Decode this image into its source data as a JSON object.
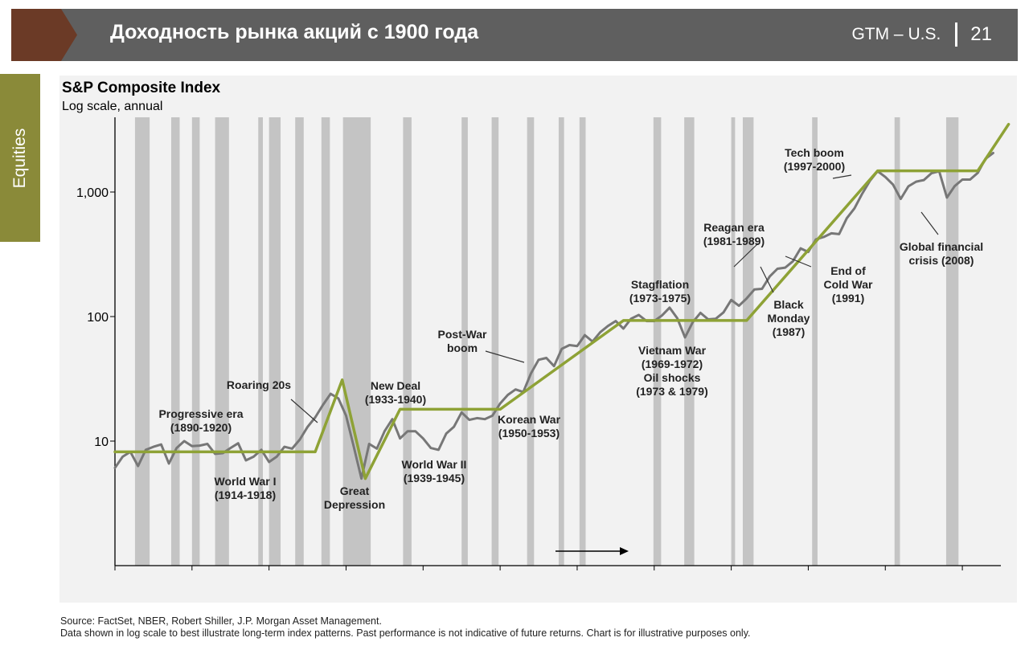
{
  "header": {
    "title": "Доходность рынка акций с 1900 года",
    "badge": "GTM – U.S.",
    "page_number": "21",
    "accent_color": "#6b3a26",
    "bar_color": "#5f5f5f"
  },
  "side_tab": {
    "label": "Equities",
    "color": "#8a8a39"
  },
  "chart_data": {
    "type": "line",
    "title": "S&P Composite Index",
    "subtitle": "Log scale, annual",
    "y_scale": "log",
    "ylim": [
      1,
      4000
    ],
    "xlim": [
      1900,
      2015
    ],
    "y_ticks": [
      {
        "value": 10,
        "label": "10"
      },
      {
        "value": 100,
        "label": "100"
      },
      {
        "value": 1000,
        "label": "1,000"
      }
    ],
    "x_ticks": [
      1900,
      1910,
      1920,
      1930,
      1940,
      1950,
      1960,
      1970,
      1980,
      1990,
      2000,
      2010
    ],
    "recession_shading": [
      [
        1902.6,
        1904.5
      ],
      [
        1907.3,
        1908.4
      ],
      [
        1910,
        1911
      ],
      [
        1913,
        1914.8
      ],
      [
        1918.6,
        1919.2
      ],
      [
        1920,
        1921.5
      ],
      [
        1923.4,
        1924.5
      ],
      [
        1926.8,
        1927.9
      ],
      [
        1929.6,
        1933.2
      ],
      [
        1937.4,
        1938.5
      ],
      [
        1945,
        1945.8
      ],
      [
        1948.9,
        1949.8
      ],
      [
        1953.5,
        1954.4
      ],
      [
        1957.6,
        1958.3
      ],
      [
        1960.3,
        1961.1
      ],
      [
        1969.9,
        1970.9
      ],
      [
        1973.9,
        1975.2
      ],
      [
        1980,
        1980.5
      ],
      [
        1981.5,
        1982.9
      ],
      [
        1990.5,
        1991.2
      ],
      [
        2001.2,
        2001.9
      ],
      [
        2007.9,
        2009.5
      ]
    ],
    "series": [
      {
        "name": "S&P Composite Index",
        "color": "#777777",
        "x": [
          1900,
          1901,
          1902,
          1903,
          1904,
          1905,
          1906,
          1907,
          1908,
          1909,
          1910,
          1911,
          1912,
          1913,
          1914,
          1915,
          1916,
          1917,
          1918,
          1919,
          1920,
          1921,
          1922,
          1923,
          1924,
          1925,
          1926,
          1927,
          1928,
          1929,
          1930,
          1931,
          1932,
          1933,
          1934,
          1935,
          1936,
          1937,
          1938,
          1939,
          1940,
          1941,
          1942,
          1943,
          1944,
          1945,
          1946,
          1947,
          1948,
          1949,
          1950,
          1951,
          1952,
          1953,
          1954,
          1955,
          1956,
          1957,
          1958,
          1959,
          1960,
          1961,
          1962,
          1963,
          1964,
          1965,
          1966,
          1967,
          1968,
          1969,
          1970,
          1971,
          1972,
          1973,
          1974,
          1975,
          1976,
          1977,
          1978,
          1979,
          1980,
          1981,
          1982,
          1983,
          1984,
          1985,
          1986,
          1987,
          1988,
          1989,
          1990,
          1991,
          1992,
          1993,
          1994,
          1995,
          1996,
          1997,
          1998,
          1999,
          2000,
          2001,
          2002,
          2003,
          2004,
          2005,
          2006,
          2007,
          2008,
          2009,
          2010,
          2011,
          2012,
          2013,
          2014
        ],
        "y": [
          6.1,
          7.5,
          8.2,
          6.3,
          8.5,
          9.0,
          9.4,
          6.6,
          8.8,
          10.0,
          9.1,
          9.2,
          9.5,
          7.9,
          8.0,
          8.8,
          9.6,
          7.0,
          7.5,
          8.5,
          6.8,
          7.5,
          9.0,
          8.7,
          10.3,
          13,
          15.5,
          19.5,
          24,
          22,
          16,
          9,
          5,
          9.5,
          8.7,
          12,
          15,
          10.5,
          12,
          12,
          10.5,
          8.8,
          8.5,
          11.5,
          13,
          17,
          14.8,
          15.3,
          15,
          16,
          20,
          23.5,
          26,
          24.8,
          35,
          45,
          46.5,
          40,
          55,
          59,
          58,
          71,
          63,
          75,
          84,
          92,
          80,
          96,
          103,
          92,
          92,
          102,
          118,
          97,
          68,
          90,
          107,
          95,
          96,
          108,
          136,
          122,
          140,
          165,
          167,
          210,
          242,
          247,
          278,
          353,
          330,
          417,
          435,
          466,
          459,
          615,
          740,
          970,
          1229,
          1469,
          1320,
          1148,
          880,
          1112,
          1212,
          1248,
          1418,
          1468,
          903,
          1115,
          1258,
          1258,
          1426,
          1848,
          2059
        ],
        "annotations_color": "#333333"
      },
      {
        "name": "Trend",
        "color": "#8ea236",
        "x": [
          1900,
          1926,
          1929.5,
          1932.5,
          1937,
          1950,
          1966,
          1982,
          1999,
          2012,
          2016
        ],
        "y": [
          8.2,
          8.2,
          31,
          5,
          18,
          18,
          93,
          93,
          1480,
          1480,
          3500
        ]
      }
    ],
    "annotations": [
      {
        "text": [
          "Progressive era",
          "(1890-1920)"
        ]
      },
      {
        "text": [
          "World War I",
          "(1914-1918)"
        ]
      },
      {
        "text": [
          "Roaring 20s"
        ]
      },
      {
        "text": [
          "Great",
          "Depression"
        ]
      },
      {
        "text": [
          "New Deal",
          "(1933-1940)"
        ]
      },
      {
        "text": [
          "World War II",
          "(1939-1945)"
        ]
      },
      {
        "text": [
          "Post-War",
          "boom"
        ]
      },
      {
        "text": [
          "Korean War",
          "(1950-1953)"
        ]
      },
      {
        "text": [
          "Stagflation",
          "(1973-1975)"
        ]
      },
      {
        "text": [
          "Vietnam War",
          "(1969-1972)",
          "Oil shocks",
          "(1973 & 1979)"
        ]
      },
      {
        "text": [
          "Reagan era",
          "(1981-1989)"
        ]
      },
      {
        "text": [
          "Black",
          "Monday",
          "(1987)"
        ]
      },
      {
        "text": [
          "End of",
          "Cold War",
          "(1991)"
        ]
      },
      {
        "text": [
          "Tech boom",
          "(1997-2000)"
        ]
      },
      {
        "text": [
          "Global financial",
          "crisis (2008)"
        ]
      }
    ]
  },
  "footnote": {
    "source": "Source: FactSet, NBER, Robert Shiller, J.P. Morgan Asset Management.",
    "disclaimer": "Data shown in log scale to best illustrate long-term index patterns. Past performance is not indicative of future returns. Chart is for illustrative purposes only."
  }
}
